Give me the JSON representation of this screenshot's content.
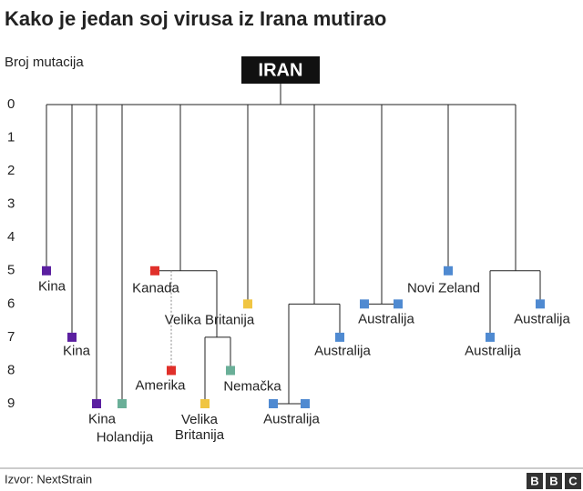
{
  "chart_data": {
    "type": "tree",
    "title": "Kako je jedan soj virusa iz Irana mutirao",
    "y_label": "Broj mutacija",
    "ylim": [
      0,
      9
    ],
    "yticks": [
      0,
      1,
      2,
      3,
      4,
      5,
      6,
      7,
      8,
      9
    ],
    "nodes": [
      {
        "label": "IRAN",
        "value": 0
      },
      {
        "label": "Kina",
        "value": 5,
        "parent": 0,
        "color": "#5b1fa0"
      },
      {
        "label": "Kina",
        "value": 7,
        "parent": 0,
        "color": "#5b1fa0"
      },
      {
        "label": "Kina",
        "value": 9,
        "parent": 0,
        "color": "#5b1fa0"
      },
      {
        "label": "Holandija",
        "value": 9,
        "parent": 0,
        "color": "#6aaf98"
      },
      {
        "value": 5,
        "parent": 0
      },
      {
        "label": "Kanada",
        "value": 5,
        "parent": 5,
        "color": "#e0302a"
      },
      {
        "label": "Amerika",
        "value": 8,
        "parent": 6,
        "color": "#e0302a"
      },
      {
        "value": 7,
        "parent": 5
      },
      {
        "label": "Velika Britanija",
        "value": 9,
        "parent": 8,
        "color": "#f0c542"
      },
      {
        "label": "Nemačka",
        "value": 8,
        "parent": 8,
        "color": "#6aaf98"
      },
      {
        "label": "Velika Britanija",
        "value": 6,
        "parent": 0,
        "color": "#f0c542"
      },
      {
        "value": 6,
        "parent": 0
      },
      {
        "value": 9,
        "parent": 12
      },
      {
        "label": "Australija",
        "value": 9,
        "parent": 13,
        "color": "#4f8ad1"
      },
      {
        "value": 9,
        "parent": 13,
        "color": "#4f8ad1"
      },
      {
        "label": "Australija",
        "value": 7,
        "parent": 12,
        "color": "#4f8ad1"
      },
      {
        "value": 6,
        "parent": 0
      },
      {
        "label": "Australija",
        "value": 6,
        "parent": 17,
        "color": "#4f8ad1"
      },
      {
        "value": 6,
        "parent": 17,
        "color": "#4f8ad1"
      },
      {
        "label": "Novi Zeland",
        "value": 5,
        "parent": 0,
        "color": "#4f8ad1"
      },
      {
        "value": 5,
        "parent": 0
      },
      {
        "label": "Australija",
        "value": 7,
        "parent": 21,
        "color": "#4f8ad1"
      },
      {
        "label": "Australija",
        "value": 6,
        "parent": 21,
        "color": "#4f8ad1"
      }
    ],
    "source": "Izvor: NextStrain",
    "logo": [
      "B",
      "B",
      "C"
    ]
  }
}
